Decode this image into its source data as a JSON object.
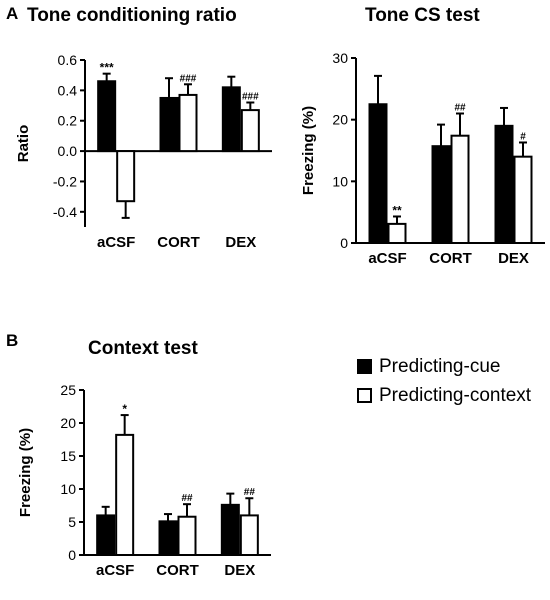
{
  "panels": [
    {
      "letter": "A"
    },
    {
      "letter": "B"
    }
  ],
  "legend": [
    {
      "label": "Predicting-cue",
      "color": "#000000"
    },
    {
      "label": "Predicting-context",
      "color": "#ffffff"
    }
  ],
  "chart_data": [
    {
      "type": "bar",
      "title": "Tone conditioning ratio",
      "ylabel": "Ratio",
      "ylim": [
        -0.5,
        0.6
      ],
      "yticks": [
        -0.4,
        -0.2,
        0.0,
        0.2,
        0.4,
        0.6
      ],
      "ytick_labels": [
        "-0.4",
        "-0.2",
        "0.0",
        "0.2",
        "0.4",
        "0.6"
      ],
      "categories": [
        "aCSF",
        "CORT",
        "DEX"
      ],
      "series": [
        {
          "name": "Predicting-cue",
          "color": "#000000",
          "values": [
            0.46,
            0.35,
            0.42
          ],
          "errors": [
            0.05,
            0.13,
            0.07
          ],
          "annotations": [
            "***",
            "",
            ""
          ]
        },
        {
          "name": "Predicting-context",
          "color": "#ffffff",
          "values": [
            -0.33,
            0.37,
            0.27
          ],
          "errors": [
            0.11,
            0.07,
            0.05
          ],
          "annotations": [
            "",
            "###",
            "###"
          ]
        }
      ]
    },
    {
      "type": "bar",
      "title": "Tone CS test",
      "ylabel": "Freezing (%)",
      "ylim": [
        0,
        30
      ],
      "yticks": [
        0,
        10,
        20,
        30
      ],
      "ytick_labels": [
        "0",
        "10",
        "20",
        "30"
      ],
      "categories": [
        "aCSF",
        "CORT",
        "DEX"
      ],
      "series": [
        {
          "name": "Predicting-cue",
          "color": "#000000",
          "values": [
            22.5,
            15.7,
            19.0
          ],
          "errors": [
            4.6,
            3.5,
            2.9
          ],
          "annotations": [
            "",
            "",
            ""
          ]
        },
        {
          "name": "Predicting-context",
          "color": "#ffffff",
          "values": [
            3.1,
            17.4,
            14.0
          ],
          "errors": [
            1.2,
            3.6,
            2.3
          ],
          "annotations": [
            "**",
            "##",
            "#"
          ]
        }
      ]
    },
    {
      "type": "bar",
      "title": "Context test",
      "ylabel": "Freezing (%)",
      "ylim": [
        0,
        25
      ],
      "yticks": [
        0,
        5,
        10,
        15,
        20,
        25
      ],
      "ytick_labels": [
        "0",
        "5",
        "10",
        "15",
        "20",
        "25"
      ],
      "categories": [
        "aCSF",
        "CORT",
        "DEX"
      ],
      "series": [
        {
          "name": "Predicting-cue",
          "color": "#000000",
          "values": [
            6.0,
            5.1,
            7.6
          ],
          "errors": [
            1.3,
            1.1,
            1.7
          ],
          "annotations": [
            "",
            "",
            ""
          ]
        },
        {
          "name": "Predicting-context",
          "color": "#ffffff",
          "values": [
            18.2,
            5.8,
            6.0
          ],
          "errors": [
            3.0,
            1.9,
            2.6
          ],
          "annotations": [
            "*",
            "##",
            "##"
          ]
        }
      ]
    }
  ]
}
